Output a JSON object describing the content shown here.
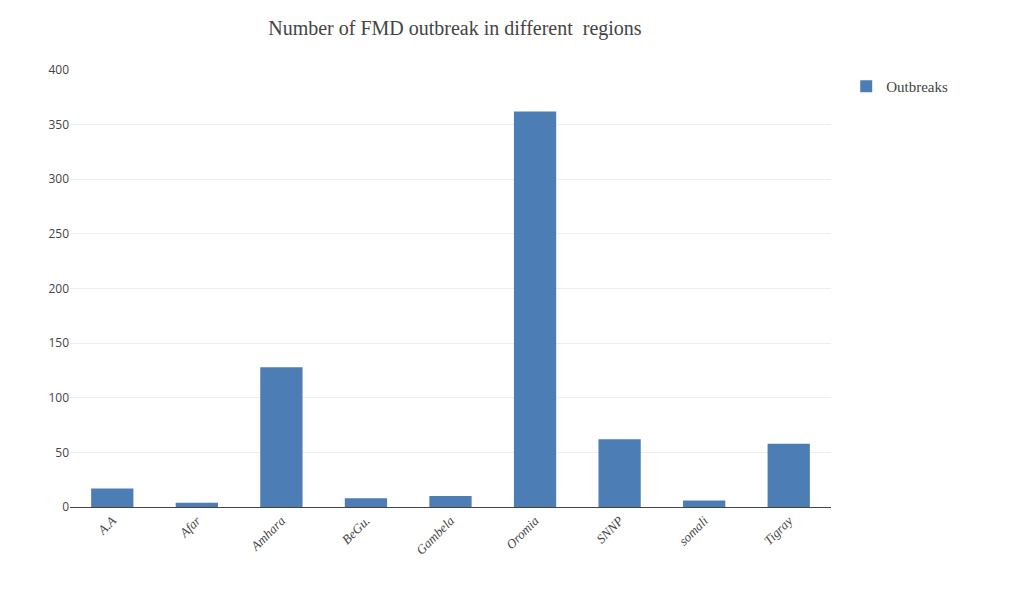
{
  "chart_data": {
    "type": "bar",
    "title": "Number of FMD outbreak in different  regions",
    "categories": [
      "A.A",
      "Afar",
      "Amhara",
      "BeGu.",
      "Gambela",
      "Oromia",
      "SNNP",
      "somali",
      "Tigray"
    ],
    "series": [
      {
        "name": "Outbreaks",
        "color": "#4d7db5",
        "values": [
          17,
          4,
          128,
          8,
          10,
          362,
          62,
          6,
          58
        ]
      }
    ],
    "ylim": [
      0,
      400
    ],
    "yticks": [
      0,
      50,
      100,
      150,
      200,
      250,
      300,
      350,
      400
    ],
    "grid": true,
    "legend": "right"
  }
}
